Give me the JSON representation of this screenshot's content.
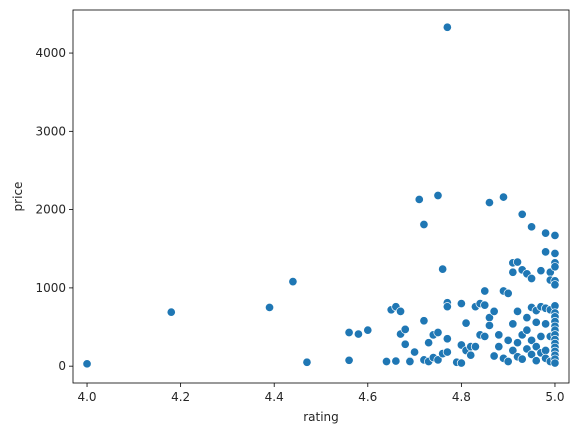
{
  "chart_data": {
    "type": "scatter",
    "title": "",
    "xlabel": "rating",
    "ylabel": "price",
    "xlim": [
      3.97,
      5.03
    ],
    "ylim": [
      -215,
      4550
    ],
    "xticks": [
      4.0,
      4.2,
      4.4,
      4.6,
      4.8,
      5.0
    ],
    "xtick_labels": [
      "4.0",
      "4.2",
      "4.4",
      "4.6",
      "4.8",
      "5.0"
    ],
    "yticks": [
      0,
      1000,
      2000,
      3000,
      4000
    ],
    "ytick_labels": [
      "0",
      "1000",
      "2000",
      "3000",
      "4000"
    ],
    "grid": false,
    "legend": "none",
    "marker_color": "#1f77b4",
    "points": [
      [
        4.0,
        30
      ],
      [
        4.18,
        690
      ],
      [
        4.39,
        750
      ],
      [
        4.44,
        1080
      ],
      [
        4.47,
        50
      ],
      [
        4.56,
        430
      ],
      [
        4.56,
        75
      ],
      [
        4.58,
        410
      ],
      [
        4.6,
        460
      ],
      [
        4.64,
        60
      ],
      [
        4.65,
        720
      ],
      [
        4.66,
        760
      ],
      [
        4.66,
        65
      ],
      [
        4.67,
        700
      ],
      [
        4.67,
        410
      ],
      [
        4.68,
        470
      ],
      [
        4.68,
        280
      ],
      [
        4.69,
        70
      ],
      [
        4.69,
        60
      ],
      [
        4.7,
        180
      ],
      [
        4.7,
        180
      ],
      [
        4.71,
        2130
      ],
      [
        4.72,
        1810
      ],
      [
        4.72,
        580
      ],
      [
        4.72,
        80
      ],
      [
        4.73,
        300
      ],
      [
        4.73,
        60
      ],
      [
        4.74,
        400
      ],
      [
        4.74,
        110
      ],
      [
        4.75,
        2180
      ],
      [
        4.75,
        430
      ],
      [
        4.75,
        80
      ],
      [
        4.76,
        1240
      ],
      [
        4.76,
        160
      ],
      [
        4.77,
        4330
      ],
      [
        4.77,
        810
      ],
      [
        4.77,
        760
      ],
      [
        4.77,
        350
      ],
      [
        4.77,
        180
      ],
      [
        4.79,
        50
      ],
      [
        4.8,
        800
      ],
      [
        4.8,
        270
      ],
      [
        4.8,
        40
      ],
      [
        4.81,
        550
      ],
      [
        4.81,
        200
      ],
      [
        4.82,
        250
      ],
      [
        4.82,
        140
      ],
      [
        4.83,
        760
      ],
      [
        4.83,
        250
      ],
      [
        4.84,
        800
      ],
      [
        4.84,
        400
      ],
      [
        4.85,
        960
      ],
      [
        4.85,
        780
      ],
      [
        4.85,
        380
      ],
      [
        4.86,
        2090
      ],
      [
        4.86,
        620
      ],
      [
        4.86,
        520
      ],
      [
        4.87,
        700
      ],
      [
        4.87,
        130
      ],
      [
        4.88,
        400
      ],
      [
        4.88,
        250
      ],
      [
        4.89,
        2160
      ],
      [
        4.89,
        960
      ],
      [
        4.89,
        100
      ],
      [
        4.9,
        930
      ],
      [
        4.9,
        330
      ],
      [
        4.9,
        60
      ],
      [
        4.91,
        1320
      ],
      [
        4.91,
        1200
      ],
      [
        4.91,
        540
      ],
      [
        4.91,
        200
      ],
      [
        4.92,
        1330
      ],
      [
        4.92,
        700
      ],
      [
        4.92,
        300
      ],
      [
        4.92,
        120
      ],
      [
        4.93,
        1940
      ],
      [
        4.93,
        1230
      ],
      [
        4.93,
        400
      ],
      [
        4.93,
        90
      ],
      [
        4.94,
        1180
      ],
      [
        4.94,
        620
      ],
      [
        4.94,
        460
      ],
      [
        4.94,
        220
      ],
      [
        4.95,
        1780
      ],
      [
        4.95,
        1120
      ],
      [
        4.95,
        750
      ],
      [
        4.95,
        330
      ],
      [
        4.95,
        150
      ],
      [
        4.96,
        710
      ],
      [
        4.96,
        560
      ],
      [
        4.96,
        250
      ],
      [
        4.96,
        70
      ],
      [
        4.97,
        1220
      ],
      [
        4.97,
        760
      ],
      [
        4.97,
        380
      ],
      [
        4.97,
        170
      ],
      [
        4.98,
        1700
      ],
      [
        4.98,
        1460
      ],
      [
        4.98,
        740
      ],
      [
        4.98,
        540
      ],
      [
        4.98,
        200
      ],
      [
        4.98,
        100
      ],
      [
        4.99,
        1200
      ],
      [
        4.99,
        1100
      ],
      [
        4.99,
        720
      ],
      [
        4.99,
        380
      ],
      [
        4.99,
        60
      ],
      [
        5.0,
        1670
      ],
      [
        5.0,
        1440
      ],
      [
        5.0,
        1320
      ],
      [
        5.0,
        1270
      ],
      [
        5.0,
        1090
      ],
      [
        5.0,
        1040
      ],
      [
        5.0,
        770
      ],
      [
        5.0,
        680
      ],
      [
        5.0,
        630
      ],
      [
        5.0,
        570
      ],
      [
        5.0,
        510
      ],
      [
        5.0,
        460
      ],
      [
        5.0,
        400
      ],
      [
        5.0,
        340
      ],
      [
        5.0,
        290
      ],
      [
        5.0,
        240
      ],
      [
        5.0,
        190
      ],
      [
        5.0,
        140
      ],
      [
        5.0,
        90
      ],
      [
        5.0,
        40
      ]
    ]
  }
}
